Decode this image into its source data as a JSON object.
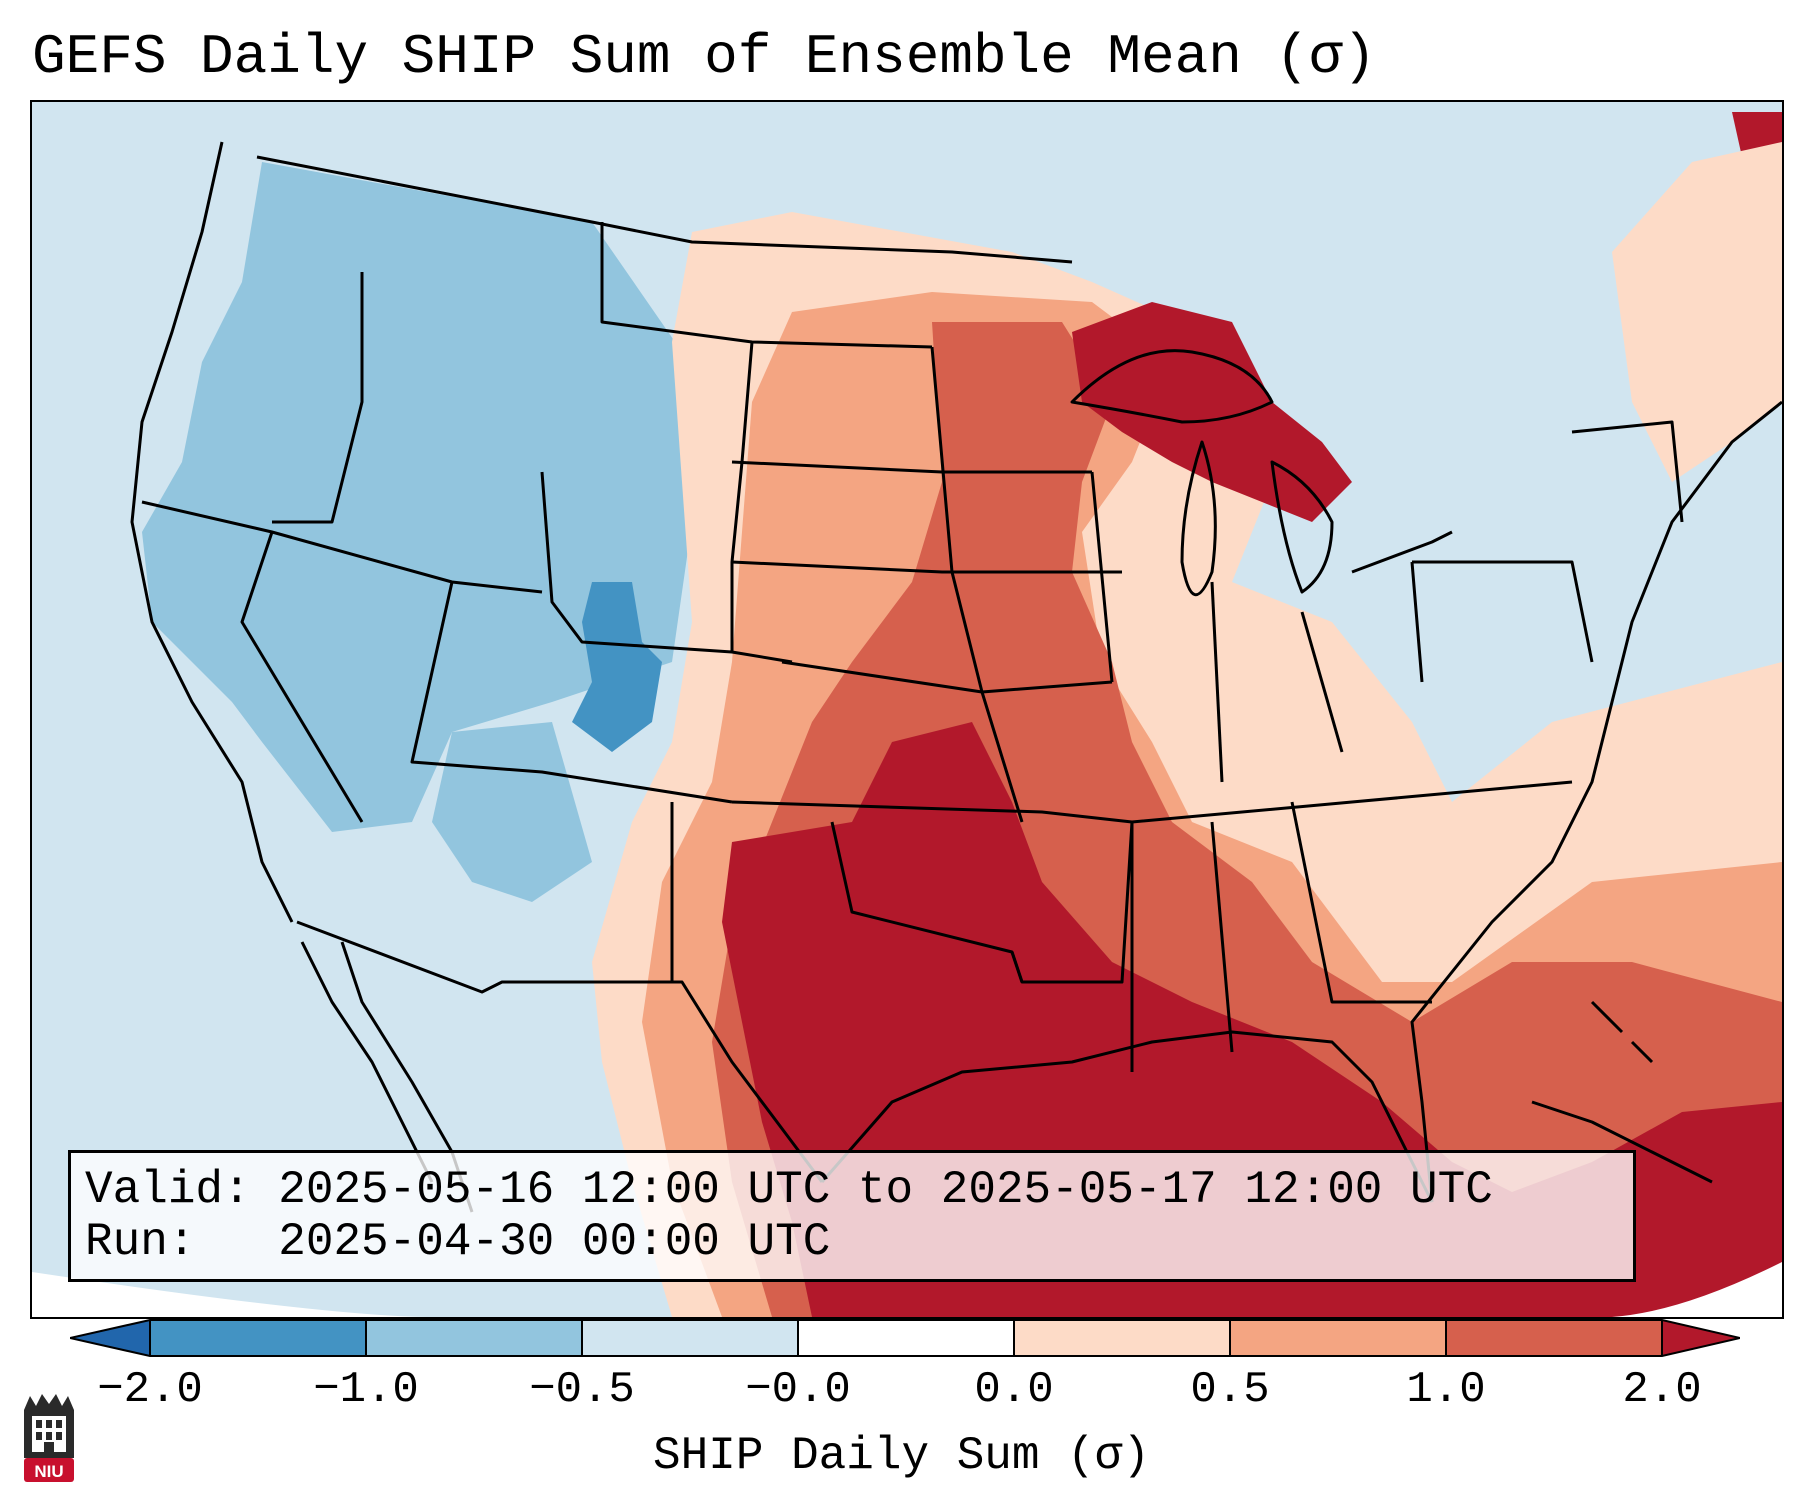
{
  "title": "GEFS Daily SHIP Sum of Ensemble Mean (σ)",
  "valid_label": "Valid: 2025-05-16 12:00 UTC to 2025-05-17 12:00 UTC",
  "run_label": "Run:   2025-04-30 00:00 UTC",
  "colorbar": {
    "label": "SHIP Daily Sum (σ)",
    "ticks": [
      "−2.0",
      "−1.0",
      "−0.5",
      "−0.0",
      "0.0",
      "0.5",
      "1.0",
      "2.0"
    ],
    "colors": [
      "#2166ac",
      "#4393c3",
      "#92c5de",
      "#d1e5f0",
      "#fddbc7",
      "#f4a582",
      "#d6604d",
      "#b2182b"
    ]
  },
  "logo": {
    "text": "NIU",
    "icon": "niu-logo-icon"
  }
}
